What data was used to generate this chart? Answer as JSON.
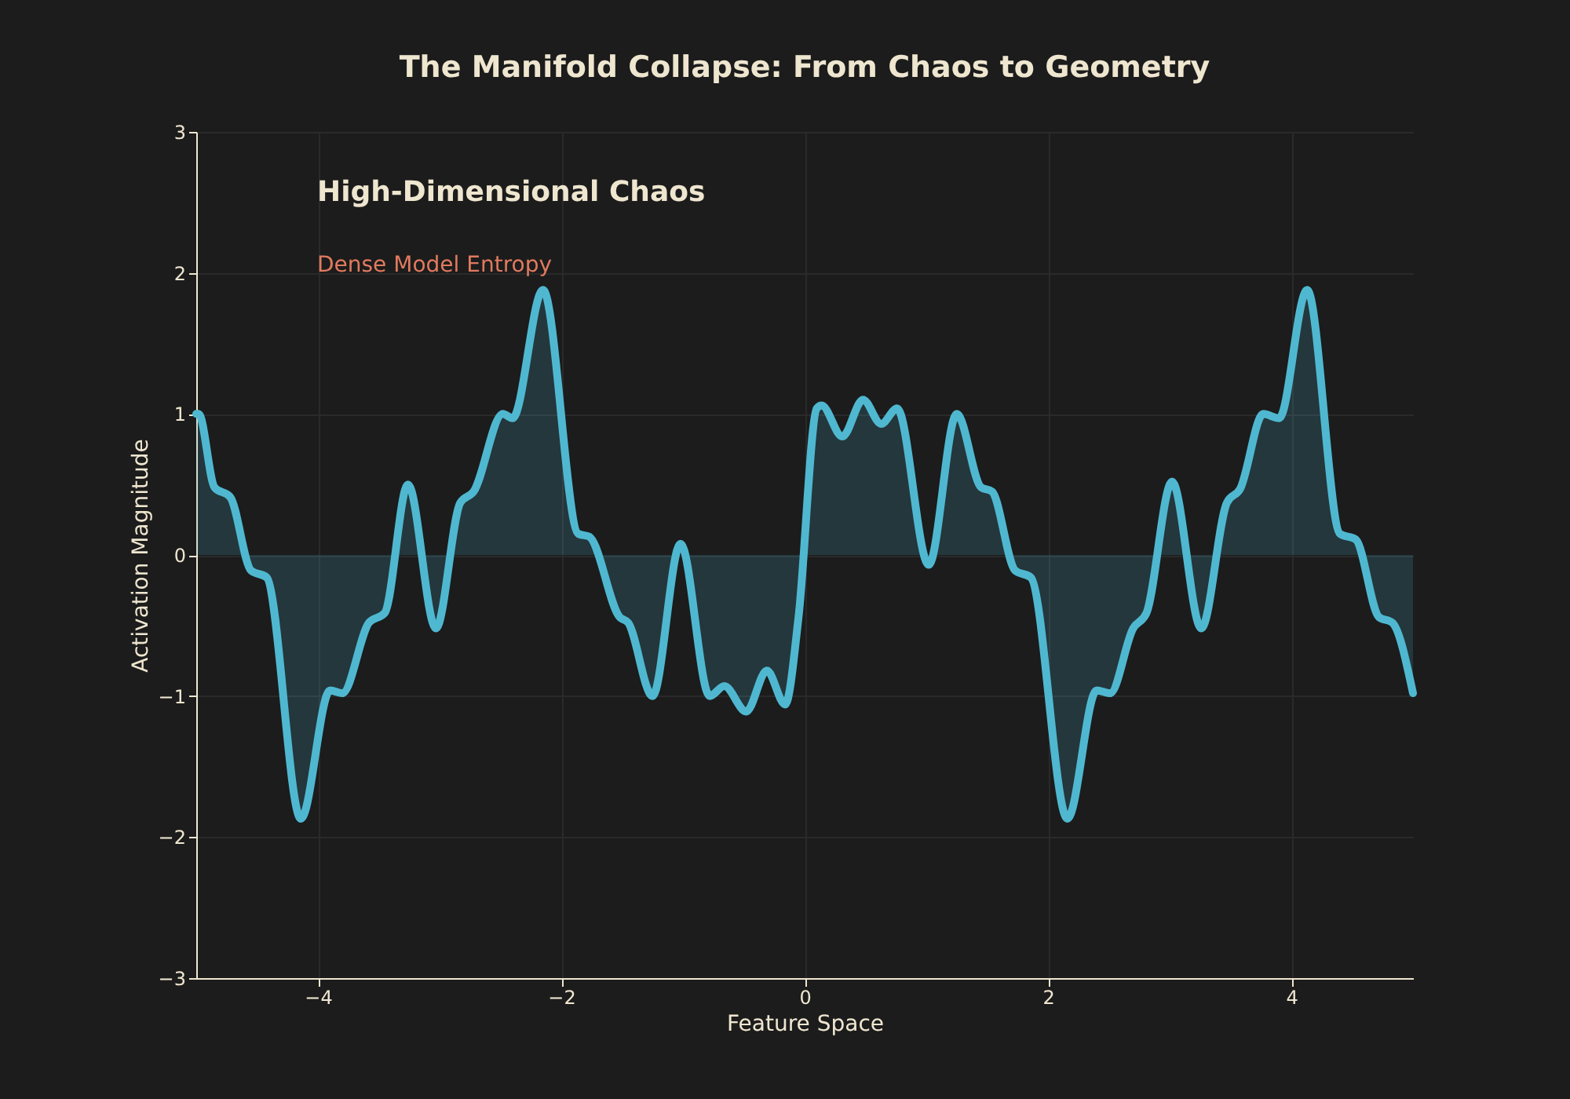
{
  "chart_data": {
    "type": "area",
    "title": "The Manifold Collapse: From Chaos to Geometry",
    "xlabel": "Feature Space",
    "ylabel": "Activation Magnitude",
    "annotations": [
      "High-Dimensional Chaos",
      "Dense Model Entropy"
    ],
    "x": [
      -5.0,
      -4.98,
      -4.85,
      -4.72,
      -4.55,
      -4.42,
      -4.14,
      -3.9,
      -3.8,
      -3.58,
      -3.45,
      -3.26,
      -3.03,
      -2.83,
      -2.72,
      -2.48,
      -2.4,
      -2.15,
      -1.86,
      -1.77,
      -1.52,
      -1.45,
      -1.25,
      -1.02,
      -0.78,
      -0.66,
      -0.48,
      -0.31,
      -0.16,
      -0.05,
      0.1,
      0.14,
      0.31,
      0.48,
      0.63,
      0.76,
      1.02,
      1.25,
      1.45,
      1.54,
      1.73,
      1.86,
      2.16,
      2.4,
      2.51,
      2.7,
      2.81,
      3.02,
      3.26,
      3.47,
      3.58,
      3.77,
      3.9,
      4.13,
      4.4,
      4.53,
      4.72,
      4.83,
      5.0
    ],
    "series": [
      {
        "color": "#4fb8d0",
        "values": [
          1.0,
          1.0,
          0.48,
          0.41,
          -0.11,
          -0.16,
          -1.87,
          -0.96,
          -0.98,
          -0.48,
          -0.41,
          0.5,
          -0.52,
          0.37,
          0.45,
          1.0,
          0.97,
          1.88,
          0.15,
          0.13,
          -0.44,
          -0.48,
          -1.0,
          0.08,
          -1.0,
          -0.93,
          -1.11,
          -0.82,
          -1.06,
          -0.44,
          1.04,
          1.06,
          0.84,
          1.1,
          0.93,
          1.04,
          -0.07,
          1.0,
          0.48,
          0.45,
          -0.11,
          -0.16,
          -1.87,
          -0.96,
          -0.98,
          -0.52,
          -0.41,
          0.52,
          -0.52,
          0.37,
          0.47,
          1.0,
          0.97,
          1.88,
          0.15,
          0.11,
          -0.44,
          -0.48,
          -0.98
        ]
      }
    ],
    "xlim": [
      -5,
      5
    ],
    "ylim": [
      -3,
      3
    ],
    "xticks": [
      -4,
      -2,
      0,
      2,
      4
    ],
    "yticks": [
      -3,
      -2,
      -1,
      0,
      1,
      2,
      3
    ],
    "grid": true
  }
}
